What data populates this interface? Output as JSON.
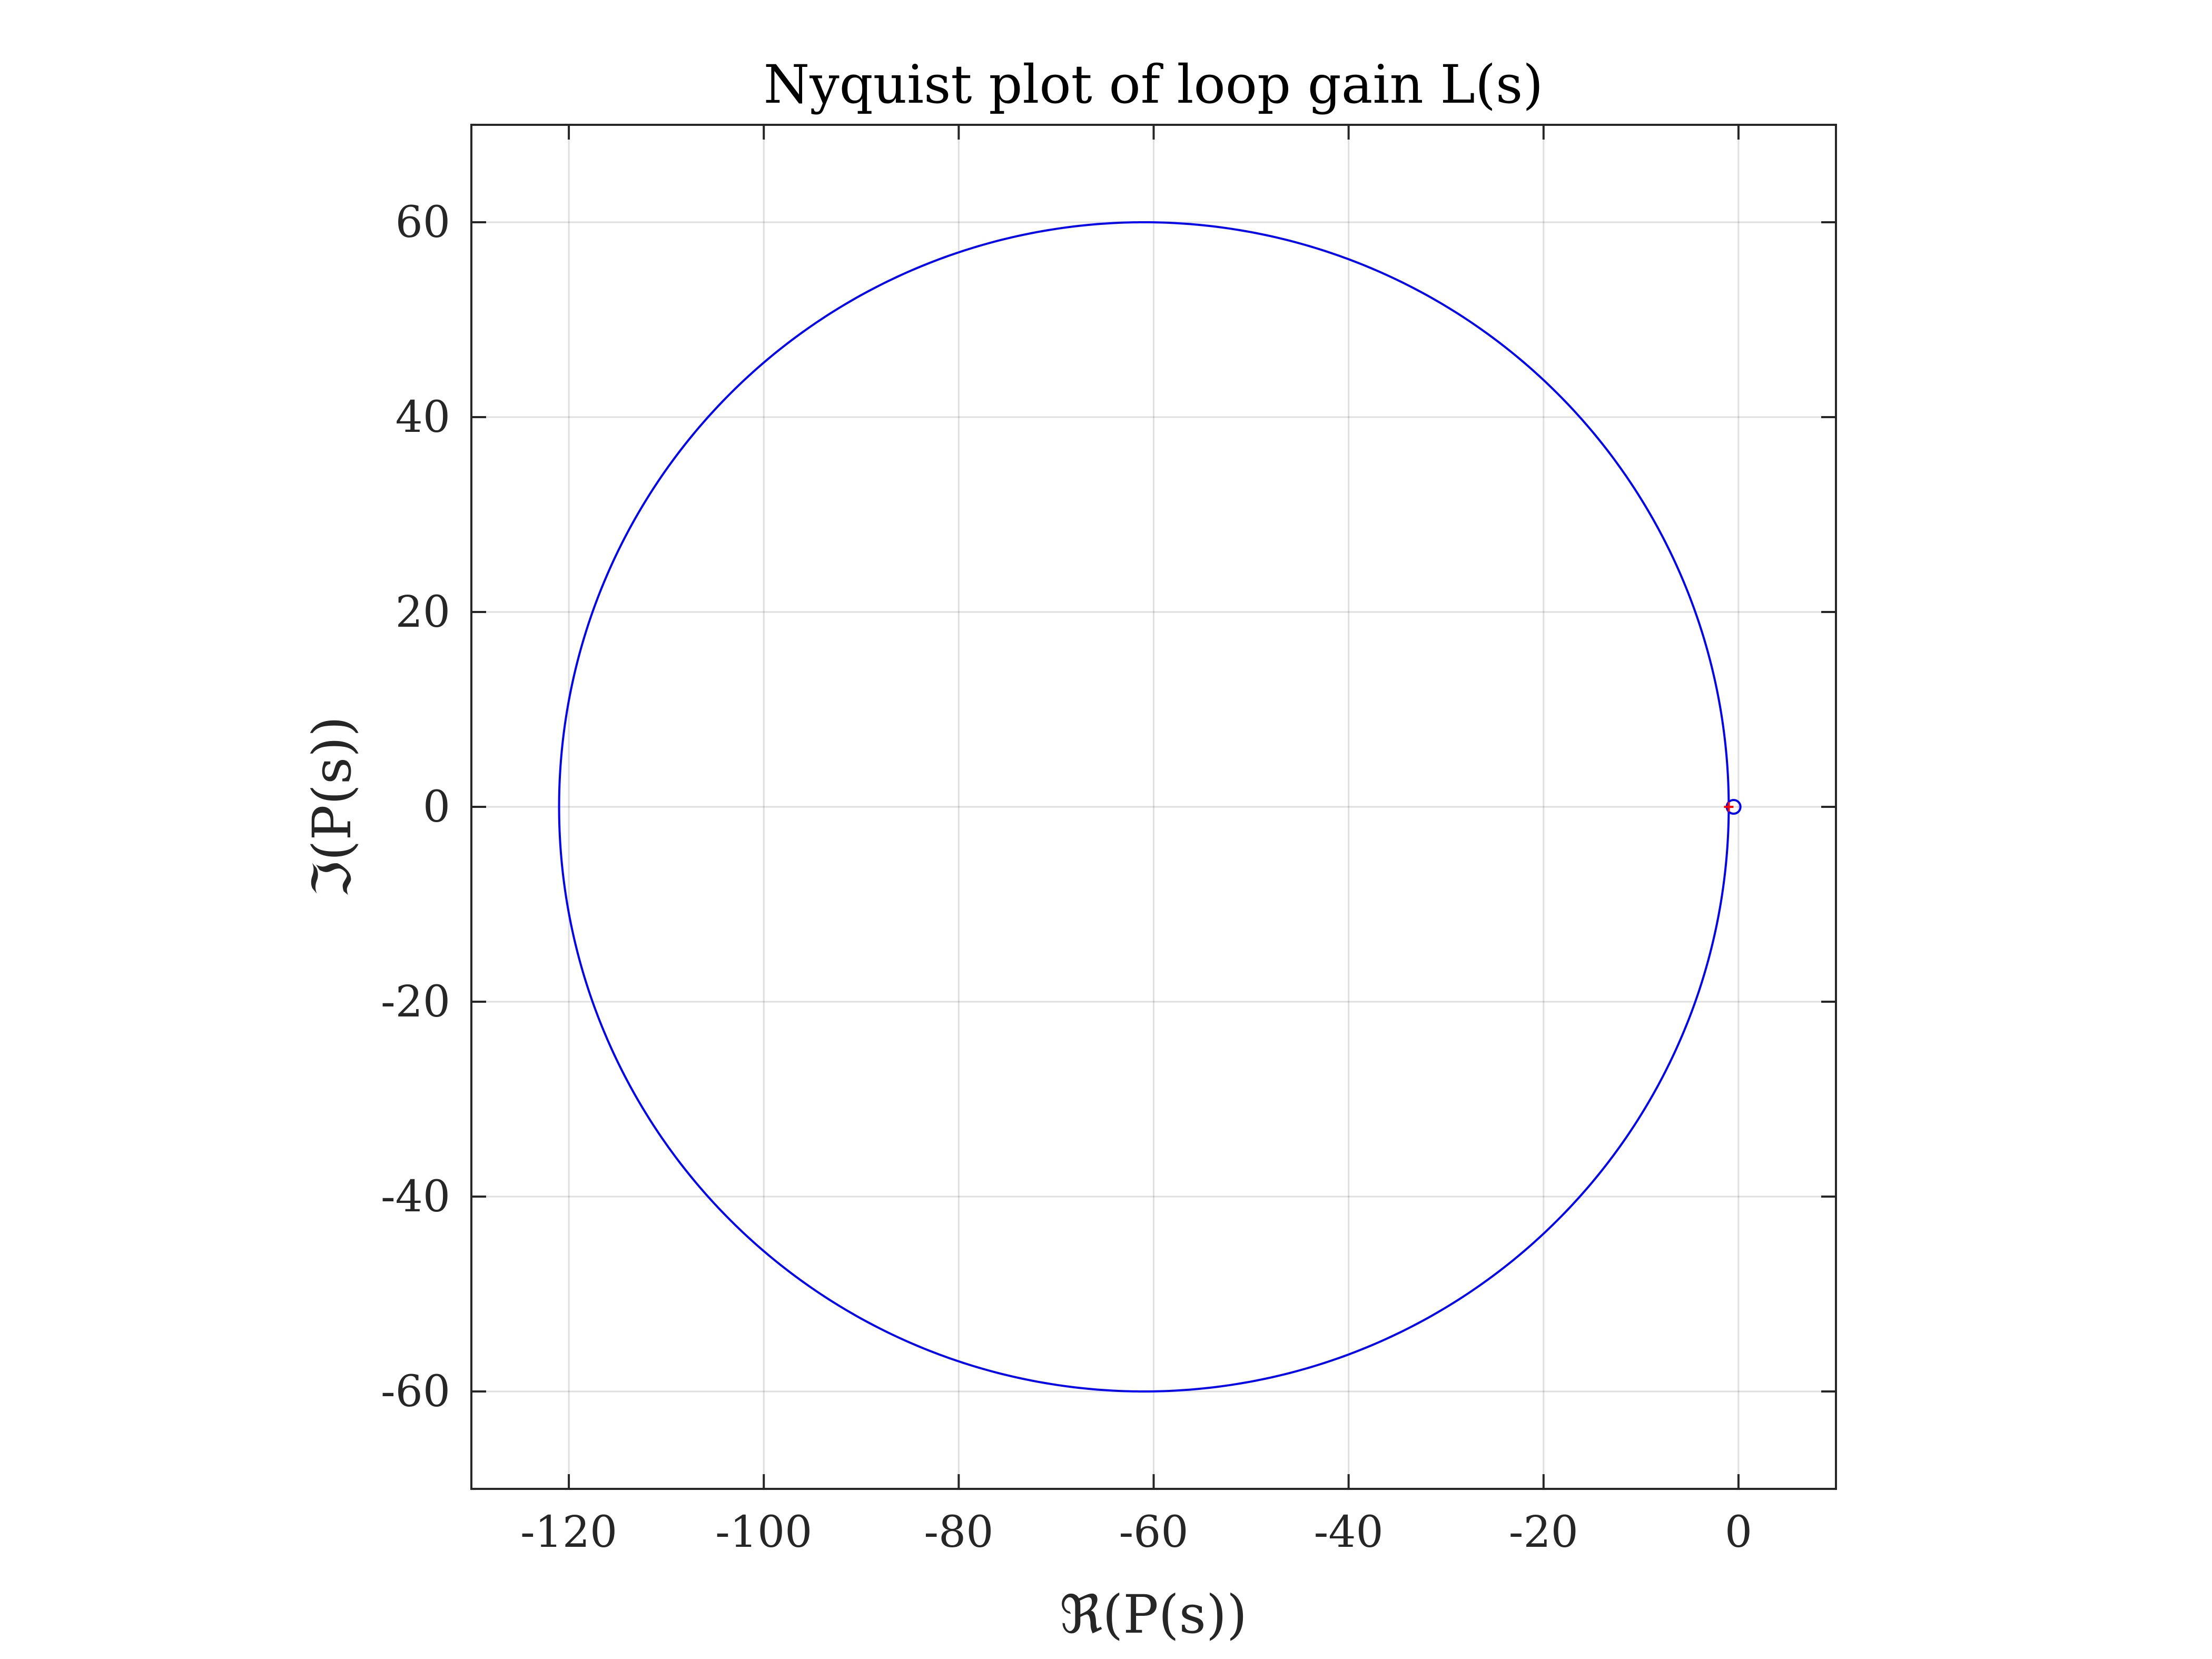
{
  "chart_data": {
    "type": "line",
    "title": "Nyquist plot of loop gain L(s)",
    "xlabel": "ℜ(P(s))",
    "ylabel": "ℑ(P(s))",
    "xlim": [
      -130,
      10
    ],
    "ylim": [
      -70,
      70
    ],
    "xticks": [
      -120,
      -100,
      -80,
      -60,
      -40,
      -20,
      0
    ],
    "xtick_labels": [
      "-120",
      "-100",
      "-80",
      "-60",
      "-40",
      "-20",
      "0"
    ],
    "yticks": [
      -60,
      -40,
      -20,
      0,
      20,
      40,
      60
    ],
    "ytick_labels": [
      "-60",
      "-40",
      "-20",
      "0",
      "20",
      "40",
      "60"
    ],
    "grid": true,
    "series": [
      {
        "type": "circle-curve",
        "color": "#0000ff",
        "center": [
          -61,
          0
        ],
        "radius": 60
      }
    ],
    "markers": [
      {
        "x": -0.5,
        "y": 0,
        "shape": "circle",
        "edgecolor": "#0000ff",
        "facecolor": "none"
      },
      {
        "x": -1,
        "y": 0,
        "shape": "plus",
        "color": "#ff0000"
      }
    ]
  }
}
